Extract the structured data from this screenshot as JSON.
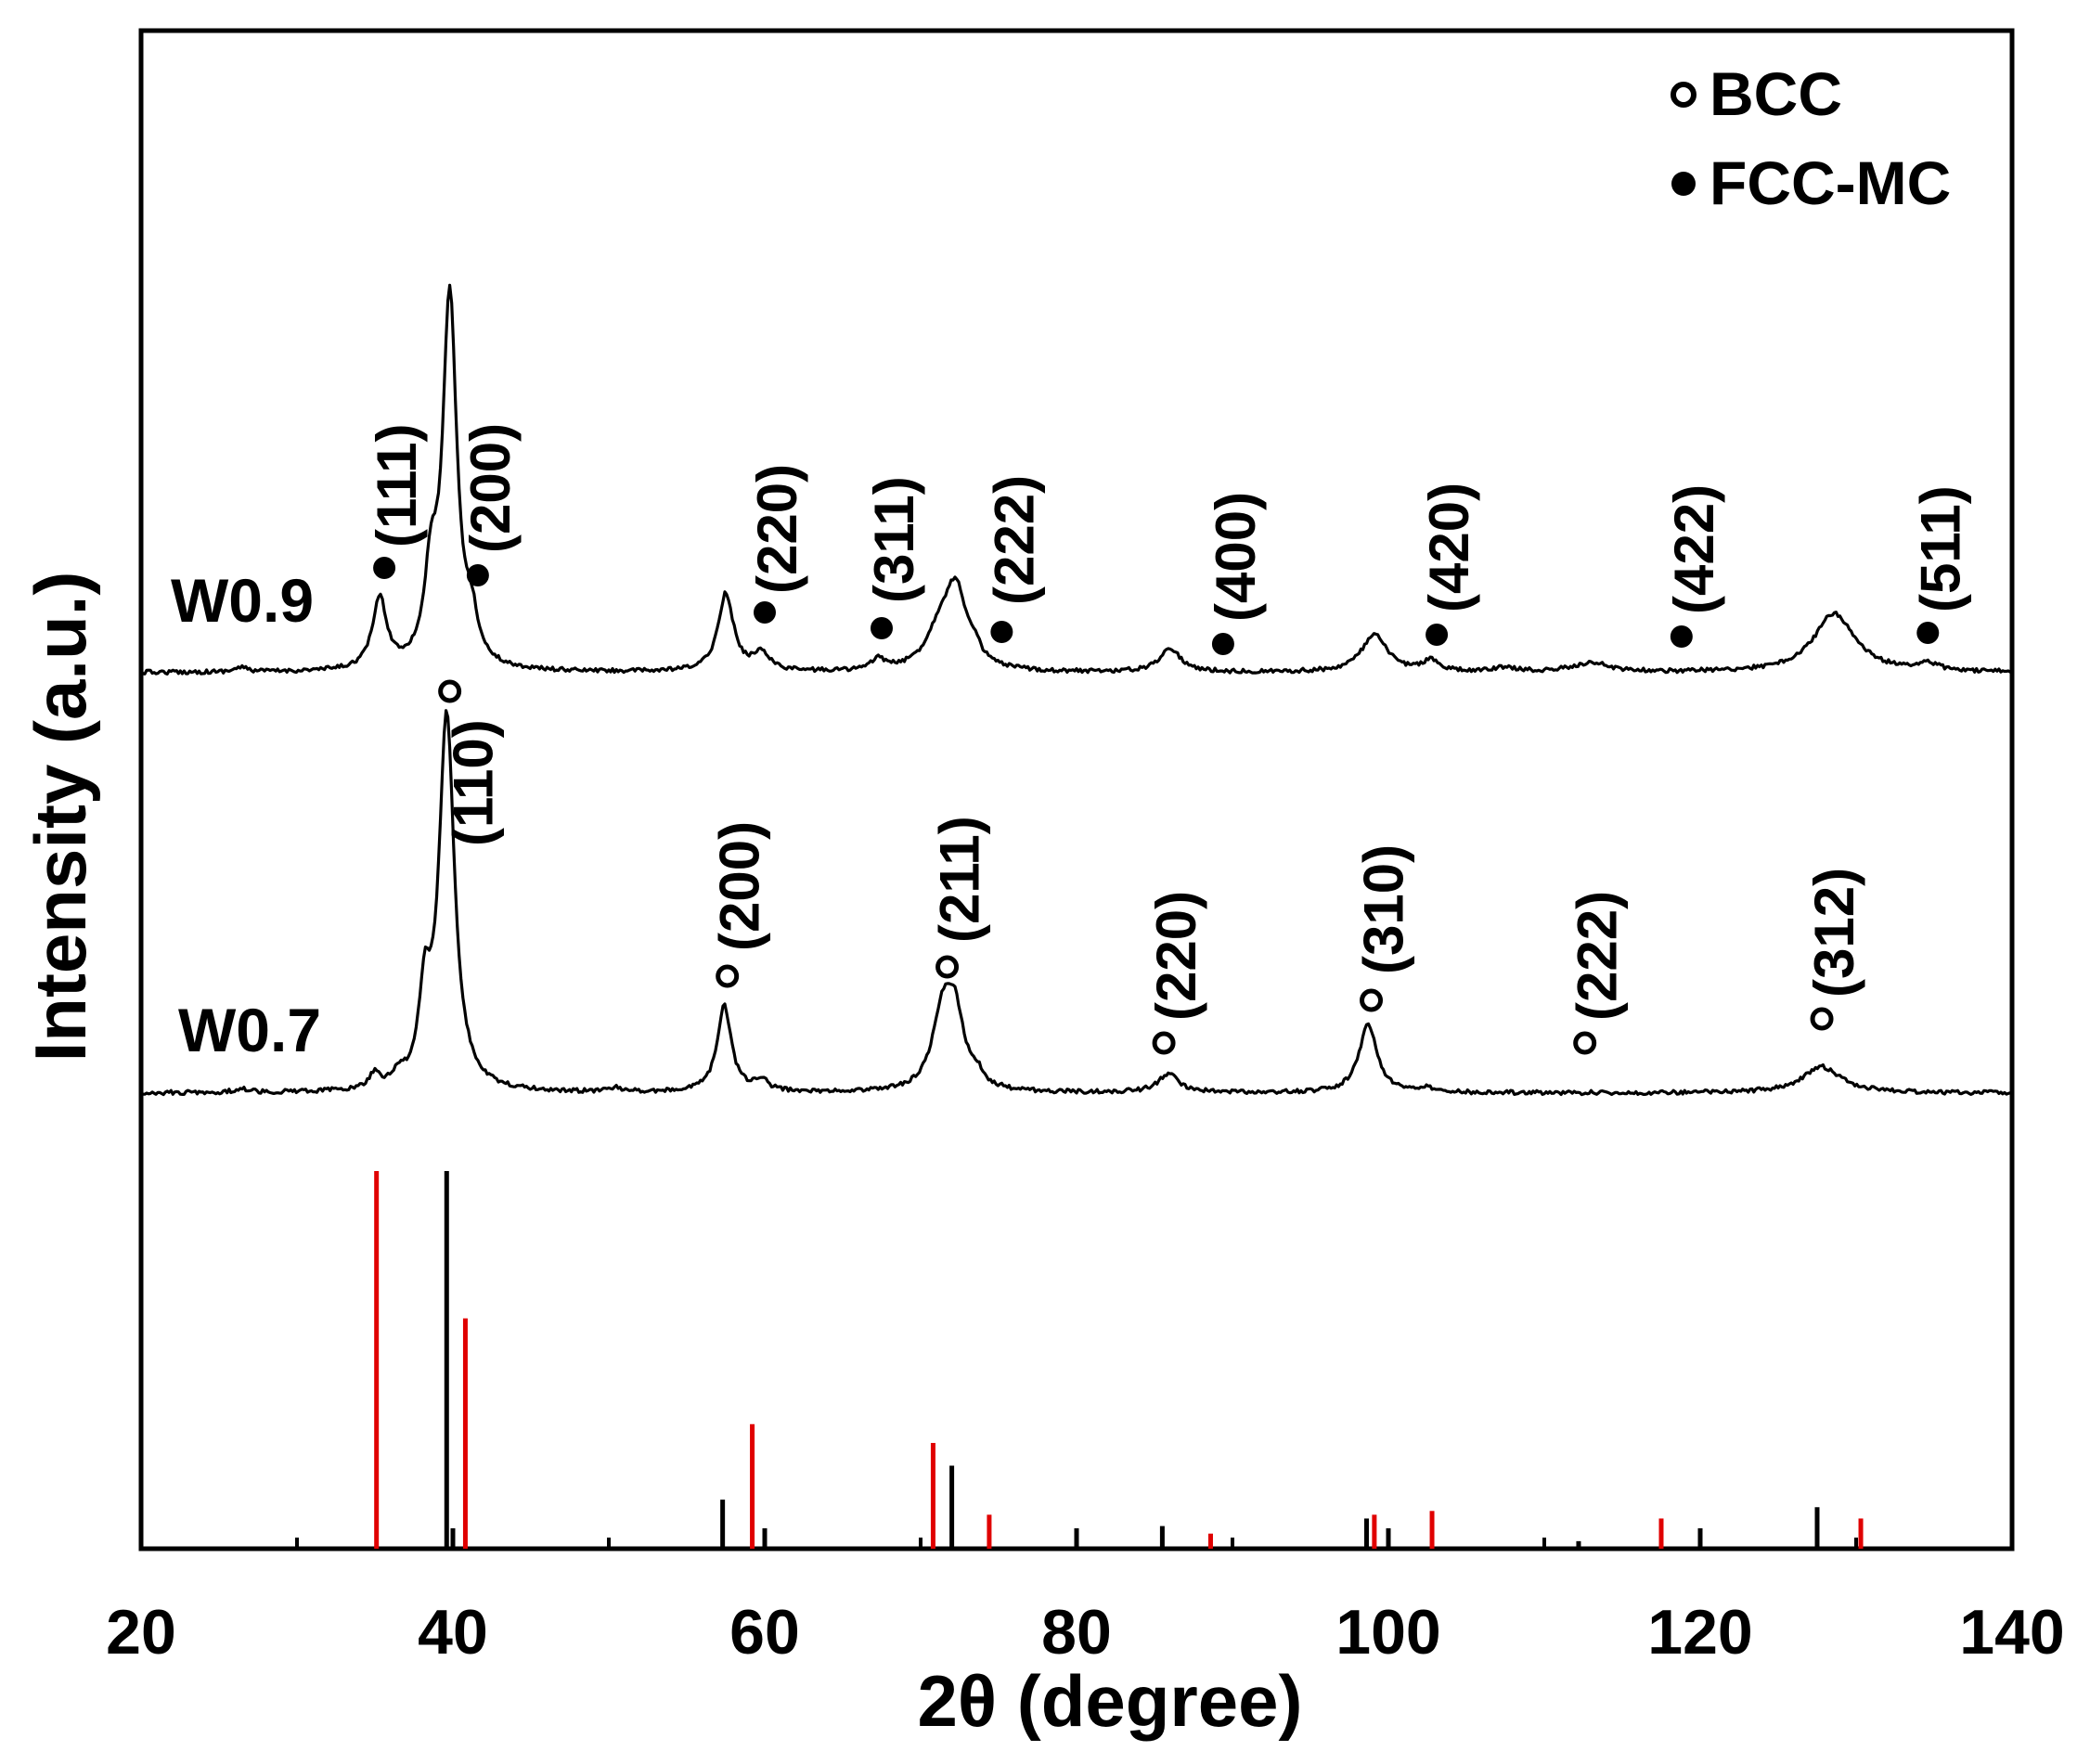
{
  "chart_data": {
    "type": "line",
    "title": "",
    "xlabel": "2θ (degree)",
    "ylabel": "Intensity (a.u.)",
    "xlim": [
      20,
      140
    ],
    "xticks": [
      "20",
      "40",
      "60",
      "80",
      "100",
      "120",
      "140"
    ],
    "yticks": [],
    "grid": false,
    "legend": {
      "placement": "top-right",
      "entries": [
        {
          "marker": "open-circle",
          "label": "BCC"
        },
        {
          "marker": "filled-circle",
          "label": "FCC-MC"
        }
      ]
    },
    "series": [
      {
        "name": "W0.9",
        "peaks": [
          {
            "x": 26.4,
            "h": 0.012,
            "w": 0.5
          },
          {
            "x": 35.3,
            "h": 0.19,
            "w": 0.55
          },
          {
            "x": 38.6,
            "h": 0.22,
            "w": 0.5
          },
          {
            "x": 39.8,
            "h": 1.0,
            "w": 0.55
          },
          {
            "x": 41.2,
            "h": 0.1,
            "w": 0.45
          },
          {
            "x": 57.5,
            "h": 0.21,
            "w": 0.6
          },
          {
            "x": 59.8,
            "h": 0.05,
            "w": 0.6
          },
          {
            "x": 67.3,
            "h": 0.03,
            "w": 0.5
          },
          {
            "x": 71.3,
            "h": 0.11,
            "w": 1.1
          },
          {
            "x": 72.3,
            "h": 0.19,
            "w": 0.8
          },
          {
            "x": 73.5,
            "h": 0.03,
            "w": 0.5
          },
          {
            "x": 86.0,
            "h": 0.065,
            "w": 0.8
          },
          {
            "x": 99.1,
            "h": 0.1,
            "w": 1.0
          },
          {
            "x": 102.7,
            "h": 0.03,
            "w": 0.6
          },
          {
            "x": 107.5,
            "h": 0.012,
            "w": 0.8
          },
          {
            "x": 113.0,
            "h": 0.025,
            "w": 1.4
          },
          {
            "x": 128.6,
            "h": 0.16,
            "w": 1.6
          },
          {
            "x": 134.6,
            "h": 0.02,
            "w": 0.8
          }
        ],
        "annotations": [
          {
            "x": 35.6,
            "marker": "filled-circle",
            "label": "(111)"
          },
          {
            "x": 41.6,
            "marker": "filled-circle",
            "label": "(200)"
          },
          {
            "x": 60.0,
            "marker": "filled-circle",
            "label": "(220)"
          },
          {
            "x": 67.5,
            "marker": "filled-circle",
            "label": "(311)"
          },
          {
            "x": 75.2,
            "marker": "filled-circle",
            "label": "(222)"
          },
          {
            "x": 89.4,
            "marker": "filled-circle",
            "label": "(400)"
          },
          {
            "x": 103.1,
            "marker": "filled-circle",
            "label": "(420)"
          },
          {
            "x": 118.8,
            "marker": "filled-circle",
            "label": "(422)"
          },
          {
            "x": 134.6,
            "marker": "filled-circle",
            "label": "(511)"
          }
        ]
      },
      {
        "name": "W0.7",
        "peaks": [
          {
            "x": 26.4,
            "h": 0.01,
            "w": 0.5
          },
          {
            "x": 35.0,
            "h": 0.04,
            "w": 0.4
          },
          {
            "x": 36.5,
            "h": 0.03,
            "w": 0.4
          },
          {
            "x": 38.2,
            "h": 0.22,
            "w": 0.45
          },
          {
            "x": 39.6,
            "h": 1.0,
            "w": 0.6
          },
          {
            "x": 50.5,
            "h": 0.01,
            "w": 0.5
          },
          {
            "x": 57.4,
            "h": 0.23,
            "w": 0.55
          },
          {
            "x": 59.8,
            "h": 0.03,
            "w": 0.5
          },
          {
            "x": 71.4,
            "h": 0.19,
            "w": 0.8
          },
          {
            "x": 72.2,
            "h": 0.18,
            "w": 0.7
          },
          {
            "x": 73.6,
            "h": 0.03,
            "w": 0.5
          },
          {
            "x": 85.9,
            "h": 0.05,
            "w": 0.8
          },
          {
            "x": 98.7,
            "h": 0.18,
            "w": 0.7
          },
          {
            "x": 102.5,
            "h": 0.01,
            "w": 0.6
          },
          {
            "x": 127.8,
            "h": 0.07,
            "w": 1.5
          }
        ],
        "annotations": [
          {
            "x": 39.8,
            "marker": "open-circle",
            "label": "(110)"
          },
          {
            "x": 57.6,
            "marker": "open-circle",
            "label": "(200)"
          },
          {
            "x": 71.7,
            "marker": "open-circle",
            "label": "(211)"
          },
          {
            "x": 85.6,
            "marker": "open-circle",
            "label": "(220)"
          },
          {
            "x": 98.9,
            "marker": "open-circle",
            "label": "(310)"
          },
          {
            "x": 112.6,
            "marker": "open-circle",
            "label": "(222)"
          },
          {
            "x": 127.8,
            "marker": "open-circle",
            "label": "(312)"
          }
        ]
      },
      {
        "name": "BCC reference",
        "type": "stick",
        "color": "#000000",
        "sticks": [
          {
            "x": 39.6,
            "h": 1.0
          },
          {
            "x": 57.3,
            "h": 0.13
          },
          {
            "x": 72.0,
            "h": 0.22
          },
          {
            "x": 85.5,
            "h": 0.06
          },
          {
            "x": 98.6,
            "h": 0.08
          },
          {
            "x": 112.2,
            "h": 0.02
          },
          {
            "x": 127.5,
            "h": 0.11
          }
        ]
      },
      {
        "name": "FCC-MC reference",
        "type": "stick",
        "color": "#e00000",
        "sticks": [
          {
            "x": 35.1,
            "h": 1.0
          },
          {
            "x": 40.8,
            "h": 0.61
          },
          {
            "x": 59.2,
            "h": 0.33
          },
          {
            "x": 70.8,
            "h": 0.28
          },
          {
            "x": 74.4,
            "h": 0.09
          },
          {
            "x": 88.6,
            "h": 0.04
          },
          {
            "x": 99.1,
            "h": 0.09
          },
          {
            "x": 102.8,
            "h": 0.1
          },
          {
            "x": 117.5,
            "h": 0.08
          },
          {
            "x": 130.3,
            "h": 0.08
          }
        ]
      }
    ]
  }
}
